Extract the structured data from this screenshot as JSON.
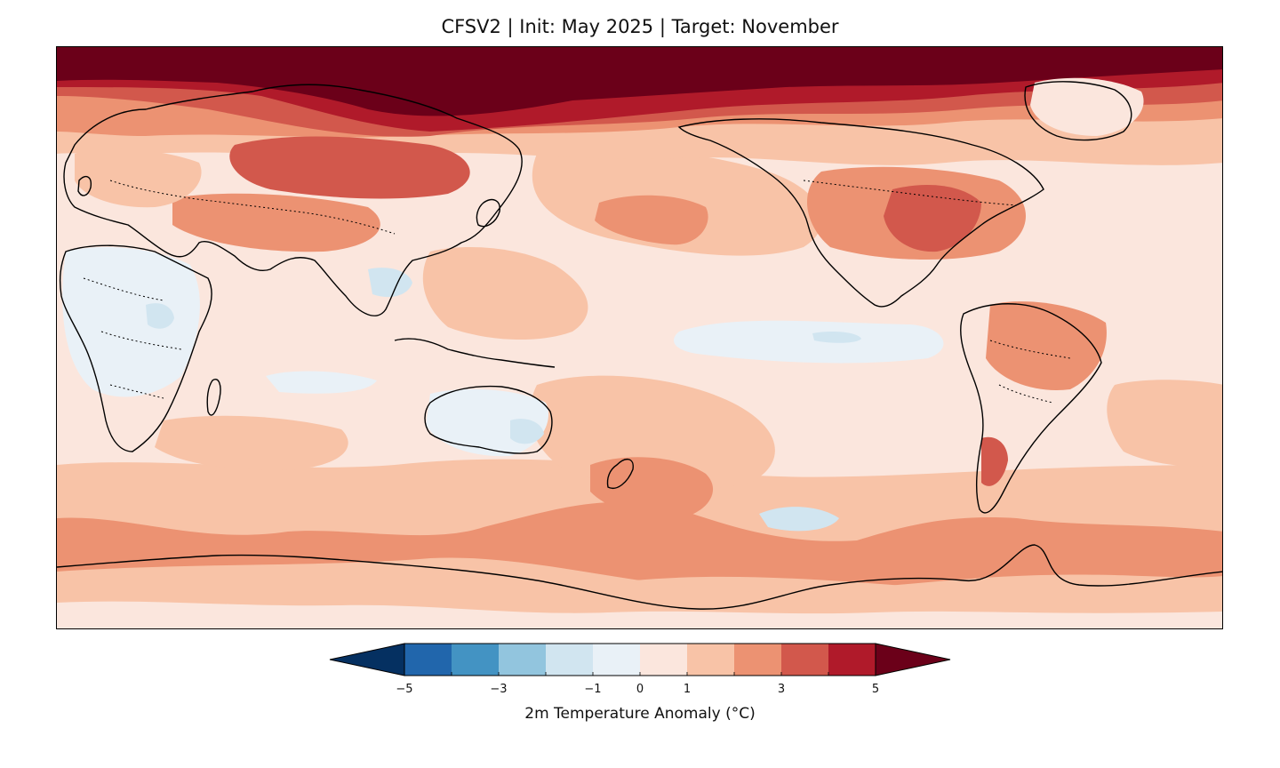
{
  "title": "CFSV2 | Init: May 2025 | Target: November",
  "colorbar": {
    "label": "2m Temperature Anomaly (°C)",
    "levels": [
      -5,
      -4,
      -3,
      -2,
      -1,
      0,
      1,
      2,
      3,
      4,
      5
    ],
    "tick_labels": [
      "−5",
      "−3",
      "−1",
      "0",
      "1",
      "3",
      "5"
    ],
    "tick_values": [
      -5,
      -3,
      -1,
      0,
      1,
      3,
      5
    ],
    "extend": "both",
    "colors": [
      "#053061",
      "#2166ac",
      "#4393c3",
      "#92c5de",
      "#d1e5f0",
      "#e9f1f7",
      "#fbe6dd",
      "#f8c3a7",
      "#ec9272",
      "#d2584c",
      "#b01a2a",
      "#6b0019"
    ],
    "under_color": "#053061",
    "over_color": "#6b0019"
  },
  "map": {
    "projection": "PlateCarree",
    "central_longitude": 180,
    "variable": "2m temperature anomaly",
    "units": "°C",
    "model": "CFSV2",
    "init": "May 2025",
    "target": "November"
  }
}
